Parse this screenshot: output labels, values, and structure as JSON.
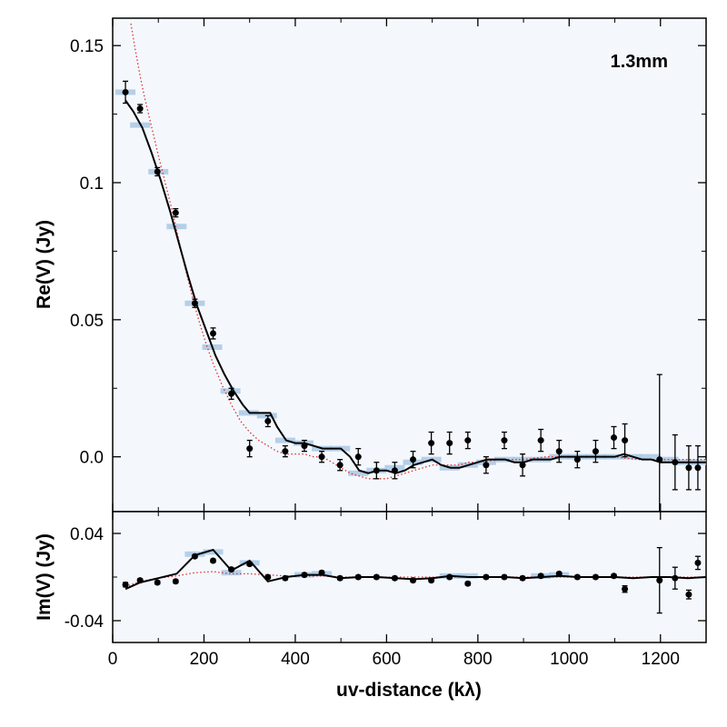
{
  "chart_data": [
    {
      "type": "scatter",
      "panel": "top",
      "annotation": "1.3mm",
      "xlabel": "uv-distance (kλ)",
      "ylabel": "Re(V) (Jy)",
      "xlim": [
        0,
        1300
      ],
      "ylim": [
        -0.02,
        0.16
      ],
      "x_ticks": [
        0,
        200,
        400,
        600,
        800,
        1000,
        1200
      ],
      "x_tick_labels": [
        "0",
        "200",
        "400",
        "600",
        "800",
        "1000",
        "1200"
      ],
      "y_ticks": [
        0.15,
        0.1,
        0.05,
        0.0
      ],
      "y_tick_labels": [
        "0.15",
        "0.1",
        "0.05",
        "0.0"
      ],
      "series": [
        {
          "name": "data points",
          "x": [
            28,
            60,
            98,
            138,
            180,
            220,
            260,
            300,
            340,
            378,
            420,
            458,
            498,
            538,
            578,
            618,
            658,
            698,
            738,
            778,
            818,
            858,
            898,
            938,
            978,
            1018,
            1058,
            1098,
            1122,
            1198,
            1232,
            1262,
            1282
          ],
          "y": [
            0.133,
            0.127,
            0.104,
            0.089,
            0.056,
            0.045,
            0.023,
            0.003,
            0.013,
            0.002,
            0.004,
            0.0,
            -0.003,
            0.0,
            -0.005,
            -0.005,
            -0.001,
            0.005,
            0.005,
            0.006,
            -0.003,
            0.006,
            -0.003,
            0.006,
            0.002,
            -0.001,
            0.002,
            0.007,
            0.006,
            -0.001,
            -0.002,
            -0.004,
            -0.004
          ],
          "yerr": [
            0.004,
            0.0015,
            0.0015,
            0.0015,
            0.0015,
            0.002,
            0.002,
            0.003,
            0.002,
            0.002,
            0.002,
            0.002,
            0.002,
            0.003,
            0.003,
            0.003,
            0.003,
            0.004,
            0.004,
            0.003,
            0.003,
            0.003,
            0.004,
            0.004,
            0.004,
            0.003,
            0.004,
            0.004,
            0.006,
            0.031,
            0.01,
            0.008,
            0.008
          ]
        },
        {
          "name": "model (solid)",
          "x": [
            28,
            45,
            65,
            85,
            105,
            125,
            145,
            165,
            185,
            205,
            225,
            245,
            265,
            285,
            300,
            320,
            345,
            360,
            380,
            400,
            420,
            440,
            460,
            480,
            500,
            520,
            540,
            560,
            580,
            600,
            620,
            640,
            660,
            680,
            700,
            720,
            740,
            760,
            780,
            800,
            820,
            840,
            860,
            880,
            900,
            920,
            940,
            960,
            980,
            1000,
            1020,
            1040,
            1060,
            1080,
            1100,
            1120,
            1140,
            1160,
            1180,
            1200,
            1220,
            1240,
            1260,
            1280,
            1300
          ],
          "y": [
            0.13,
            0.126,
            0.12,
            0.111,
            0.101,
            0.09,
            0.078,
            0.066,
            0.055,
            0.046,
            0.037,
            0.03,
            0.024,
            0.019,
            0.016,
            0.016,
            0.016,
            0.011,
            0.006,
            0.005,
            0.005,
            0.004,
            0.003,
            0.003,
            0.003,
            0.0,
            -0.005,
            -0.006,
            -0.005,
            -0.005,
            -0.006,
            -0.005,
            -0.003,
            -0.002,
            -0.001,
            -0.003,
            -0.004,
            -0.004,
            -0.003,
            -0.002,
            -0.001,
            -0.001,
            -0.001,
            -0.002,
            -0.002,
            -0.001,
            -0.001,
            -0.001,
            0.0,
            0.0,
            0.0,
            0.0,
            0.0,
            0.0,
            0.0,
            0.001,
            0.0,
            -0.001,
            -0.001,
            -0.002,
            -0.002,
            -0.002,
            -0.002,
            -0.002,
            -0.002
          ]
        },
        {
          "name": "model (dotted)",
          "x": [
            40,
            50,
            60,
            70,
            80,
            90,
            100,
            115,
            130,
            145,
            160,
            175,
            190,
            205,
            220,
            240,
            260,
            280,
            300,
            320,
            340,
            360,
            380,
            400,
            420,
            440,
            460,
            480,
            500,
            520,
            540,
            560,
            580,
            600,
            620,
            640,
            660,
            680,
            700,
            720,
            740,
            760,
            780,
            800,
            850,
            900,
            950,
            1000,
            1050,
            1100,
            1150,
            1200,
            1250,
            1300
          ],
          "y": [
            0.158,
            0.148,
            0.139,
            0.131,
            0.124,
            0.117,
            0.11,
            0.1,
            0.09,
            0.079,
            0.068,
            0.058,
            0.049,
            0.041,
            0.034,
            0.026,
            0.019,
            0.013,
            0.009,
            0.006,
            0.004,
            0.002,
            0.001,
            0.001,
            0.001,
            0.0,
            0.0,
            -0.002,
            -0.004,
            -0.006,
            -0.007,
            -0.008,
            -0.008,
            -0.008,
            -0.007,
            -0.006,
            -0.005,
            -0.004,
            -0.003,
            -0.003,
            -0.003,
            -0.003,
            -0.002,
            -0.002,
            -0.001,
            -0.001,
            0.0,
            0.0,
            0.0,
            0.0,
            -0.001,
            -0.001,
            -0.001,
            -0.001
          ]
        },
        {
          "name": "binned model (blue bars)",
          "x": [
            28,
            60,
            100,
            140,
            180,
            218,
            258,
            298,
            338,
            378,
            418,
            458,
            498,
            538,
            578,
            618,
            658,
            698,
            738,
            778,
            818,
            858,
            898,
            938,
            978,
            1018,
            1058,
            1098,
            1138,
            1178,
            1218,
            1258,
            1282
          ],
          "y": [
            0.133,
            0.121,
            0.104,
            0.084,
            0.056,
            0.04,
            0.024,
            0.016,
            0.015,
            0.006,
            0.005,
            0.003,
            0.003,
            -0.006,
            -0.005,
            -0.004,
            -0.002,
            -0.001,
            -0.004,
            -0.003,
            -0.002,
            -0.001,
            -0.001,
            -0.001,
            0.0,
            0.0,
            0.0,
            0.0,
            0.0,
            0.0,
            -0.001,
            -0.002,
            -0.002
          ]
        }
      ]
    },
    {
      "type": "scatter",
      "panel": "bottom",
      "xlabel": "uv-distance (kλ)",
      "ylabel": "Im(V) (Jy)",
      "xlim": [
        0,
        1300
      ],
      "ylim": [
        -0.06,
        0.06
      ],
      "y_ticks": [
        0.04,
        -0.04
      ],
      "y_tick_labels": [
        "0.04",
        "-0.04"
      ],
      "series": [
        {
          "name": "data points",
          "x": [
            28,
            60,
            98,
            138,
            180,
            220,
            260,
            300,
            340,
            378,
            420,
            458,
            498,
            538,
            578,
            618,
            658,
            698,
            738,
            778,
            818,
            858,
            898,
            938,
            978,
            1018,
            1058,
            1098,
            1122,
            1198,
            1232,
            1262,
            1282
          ],
          "y": [
            -0.007,
            -0.003,
            -0.005,
            -0.004,
            0.019,
            0.015,
            0.007,
            0.012,
            0.0,
            -0.001,
            0.002,
            0.004,
            -0.001,
            0.0,
            0.0,
            -0.001,
            -0.003,
            -0.003,
            0.0,
            -0.006,
            0.0,
            0.0,
            -0.001,
            0.001,
            0.003,
            0.0,
            0.0,
            0.001,
            -0.011,
            -0.003,
            -0.001,
            -0.016,
            0.013
          ],
          "yerr": [
            0.002,
            0.0015,
            0.0015,
            0.0015,
            0.0015,
            0.0015,
            0.0015,
            0.0015,
            0.0015,
            0.0015,
            0.0015,
            0.0015,
            0.0015,
            0.0015,
            0.0015,
            0.0015,
            0.0015,
            0.0015,
            0.0015,
            0.0015,
            0.0015,
            0.0015,
            0.0015,
            0.0015,
            0.0015,
            0.0015,
            0.0015,
            0.0015,
            0.003,
            0.03,
            0.01,
            0.004,
            0.006
          ]
        },
        {
          "name": "model (solid)",
          "x": [
            28,
            60,
            100,
            140,
            180,
            220,
            260,
            300,
            340,
            380,
            420,
            460,
            500,
            540,
            580,
            620,
            660,
            700,
            740,
            780,
            820,
            860,
            900,
            940,
            980,
            1020,
            1060,
            1100,
            1140,
            1180,
            1220,
            1260,
            1300
          ],
          "y": [
            -0.011,
            -0.005,
            -0.001,
            0.003,
            0.02,
            0.025,
            0.006,
            0.015,
            -0.004,
            0.0,
            0.002,
            0.002,
            -0.001,
            0.0,
            0.0,
            -0.001,
            -0.002,
            -0.001,
            0.001,
            0.0,
            0.0,
            0.0,
            -0.001,
            0.0,
            0.001,
            0.0,
            0.0,
            0.0,
            -0.001,
            0.0,
            0.0,
            -0.001,
            0.0
          ]
        },
        {
          "name": "model (dotted)",
          "x": [
            28,
            60,
            100,
            140,
            180,
            220,
            260,
            300,
            340,
            380,
            420,
            460,
            500,
            540,
            580,
            620,
            660,
            700,
            740,
            780,
            820,
            860,
            900,
            940,
            980,
            1020,
            1060,
            1100,
            1140,
            1180,
            1220,
            1260,
            1300
          ],
          "y": [
            -0.009,
            -0.004,
            -0.001,
            0.001,
            0.004,
            0.005,
            0.003,
            0.003,
            0.002,
            0.001,
            0.001,
            0.001,
            0.0,
            0.0,
            0.0,
            0.0,
            0.0,
            0.0,
            0.0,
            0.0,
            0.0,
            0.0,
            0.0,
            0.0,
            0.0,
            0.0,
            0.0,
            0.0,
            0.0,
            0.0,
            0.0,
            0.0,
            0.0
          ]
        },
        {
          "name": "binned model (blue bars)",
          "x": [
            180,
            220,
            260,
            300,
            420,
            458,
            738,
            778,
            938,
            978
          ],
          "y": [
            0.021,
            0.023,
            0.004,
            0.013,
            0.002,
            0.003,
            0.001,
            0.001,
            0.001,
            0.002
          ]
        }
      ]
    }
  ],
  "colors": {
    "panel_background": "#f4f8fd",
    "data_point": "#000000",
    "model_solid": "#000000",
    "model_dotted": "#e03030",
    "binned_bars": "#a9c8e4"
  }
}
